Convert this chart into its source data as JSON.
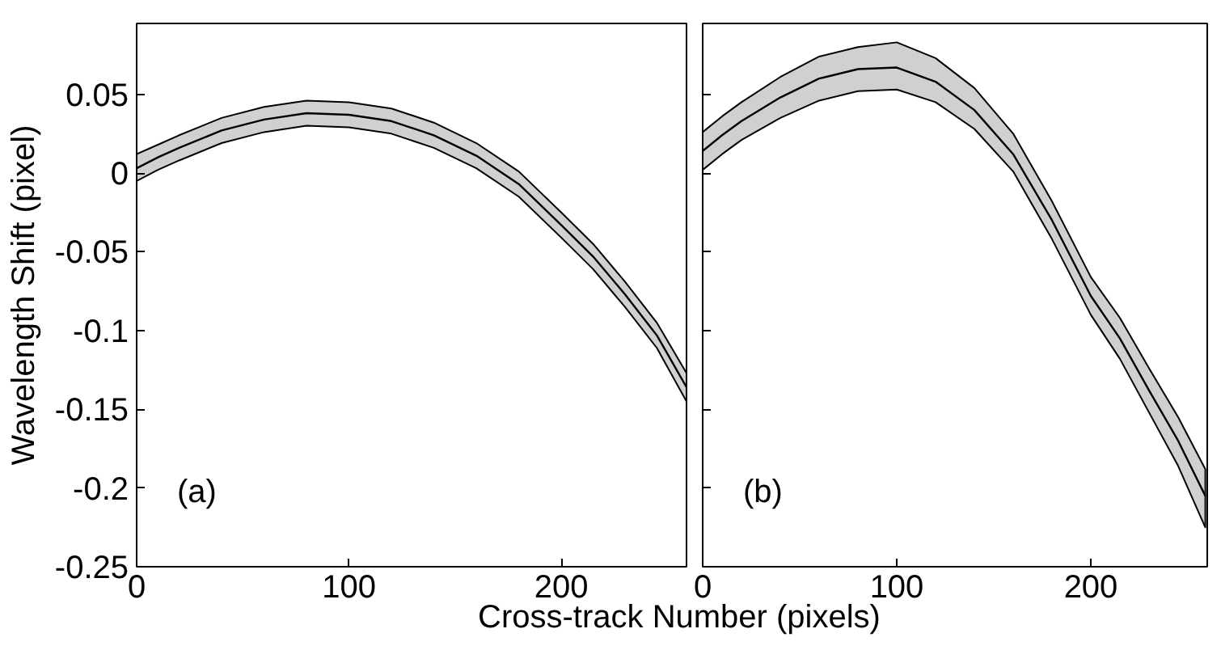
{
  "chart_data": [
    {
      "type": "line",
      "ylabel": "Wavelength Shift (pixel)",
      "xlabel": "Cross-track Number (pixels)",
      "annotations": [
        "(a)"
      ],
      "xlim": [
        0,
        259
      ],
      "xticks": [
        0,
        100,
        200
      ],
      "ylim": [
        -0.25,
        0.095
      ],
      "yticks": [
        0.05,
        0,
        -0.05,
        -0.1,
        -0.15,
        -0.2,
        -0.25
      ],
      "grid": false,
      "line_style": "solid",
      "x": [
        0,
        10,
        20,
        40,
        60,
        80,
        100,
        120,
        140,
        160,
        180,
        200,
        215,
        230,
        245,
        259
      ],
      "series": [
        {
          "color": "#000000",
          "values": [
            0.003,
            0.01,
            0.016,
            0.027,
            0.034,
            0.038,
            0.037,
            0.033,
            0.024,
            0.011,
            -0.007,
            -0.033,
            -0.053,
            -0.077,
            -0.103,
            -0.136
          ],
          "lower": [
            -0.005,
            0.002,
            0.008,
            0.019,
            0.026,
            0.03,
            0.029,
            0.025,
            0.016,
            0.003,
            -0.015,
            -0.041,
            -0.061,
            -0.085,
            -0.111,
            -0.145
          ],
          "upper": [
            0.012,
            0.018,
            0.024,
            0.035,
            0.042,
            0.046,
            0.045,
            0.041,
            0.032,
            0.019,
            0.001,
            -0.025,
            -0.045,
            -0.069,
            -0.095,
            -0.127
          ]
        }
      ]
    },
    {
      "type": "line",
      "annotations": [
        "(b)"
      ],
      "xlim": [
        0,
        260
      ],
      "xticks": [
        0,
        100,
        200
      ],
      "ylim": [
        -0.25,
        0.095
      ],
      "yticks": [
        0.05,
        0,
        -0.05,
        -0.1,
        -0.15,
        -0.2,
        -0.25
      ],
      "grid": false,
      "line_style": "solid",
      "tick_labels": "x",
      "x": [
        0,
        10,
        20,
        40,
        60,
        80,
        100,
        120,
        140,
        160,
        180,
        200,
        215,
        230,
        245,
        259
      ],
      "series": [
        {
          "color": "#000000",
          "values": [
            0.014,
            0.024,
            0.033,
            0.048,
            0.06,
            0.066,
            0.067,
            0.058,
            0.04,
            0.012,
            -0.03,
            -0.078,
            -0.105,
            -0.138,
            -0.17,
            -0.205
          ],
          "lower": [
            0.002,
            0.012,
            0.021,
            0.035,
            0.046,
            0.052,
            0.053,
            0.045,
            0.028,
            0.001,
            -0.042,
            -0.09,
            -0.118,
            -0.152,
            -0.186,
            -0.225
          ],
          "upper": [
            0.026,
            0.036,
            0.045,
            0.061,
            0.074,
            0.08,
            0.083,
            0.073,
            0.054,
            0.025,
            -0.018,
            -0.066,
            -0.092,
            -0.124,
            -0.155,
            -0.188
          ]
        }
      ]
    }
  ]
}
